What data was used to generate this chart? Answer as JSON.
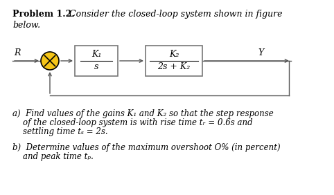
{
  "background_color": "#ffffff",
  "title_bold": "Problem 1.2.",
  "title_italic": " Consider the closed-loop system shown in figure",
  "title_line2": "below.",
  "block1_top": "K₁",
  "block1_bot": "s",
  "block2_top": "K₂",
  "block2_bot": "2s + K₂",
  "R_label": "R",
  "Y_label": "Y",
  "sumjunction_color": "#f5c518",
  "part_a1": "a)  Find values of the gains K₁ and K₂ so that the step response",
  "part_a2": "    of the closed-loop system is with rise time tᵣ = 0.6s and",
  "part_a3": "    settling time tₛ = 2s.",
  "part_b1": "b)  Determine values of the maximum overshoot O% (in percent)",
  "part_b2": "    and peak time tₚ.",
  "fig_width": 4.82,
  "fig_height": 2.82,
  "dpi": 100
}
